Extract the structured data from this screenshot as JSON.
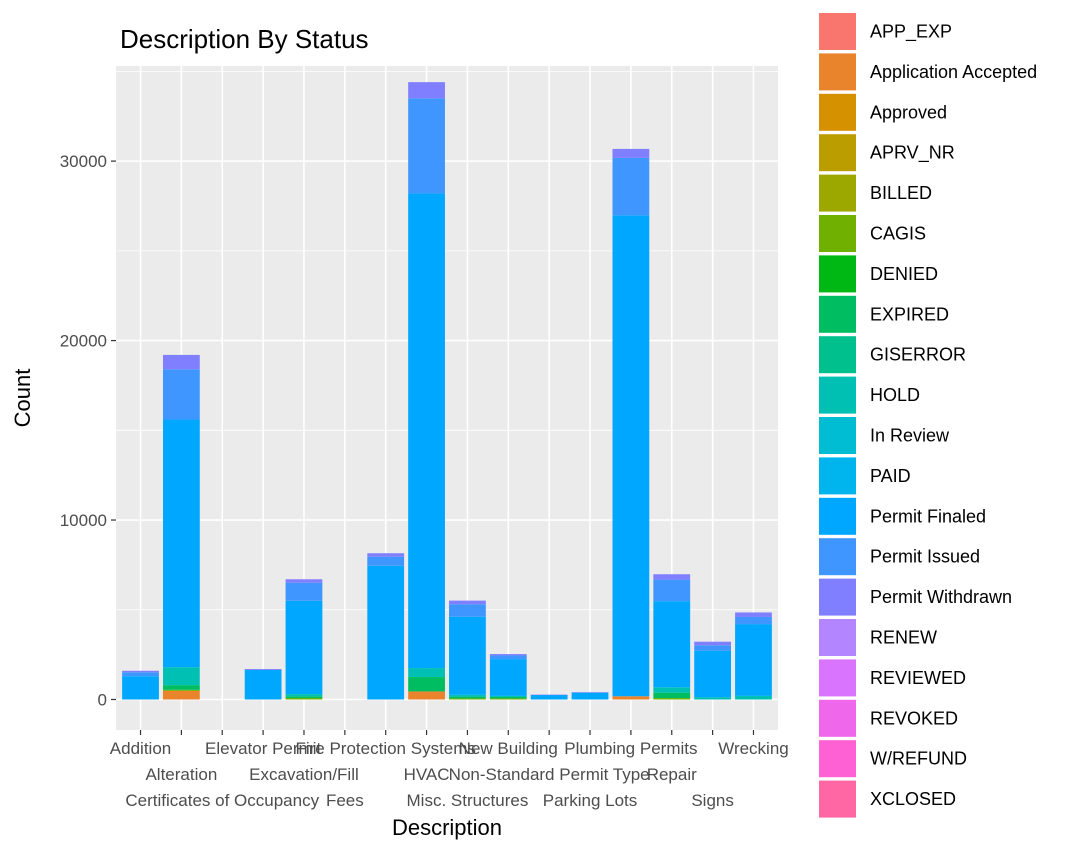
{
  "chart_data": {
    "type": "bar",
    "stacked": true,
    "title": "Description By Status",
    "xlabel": "Description",
    "ylabel": "Count",
    "ylim": [
      -1700,
      35300
    ],
    "yticks": [
      0,
      10000,
      20000,
      30000
    ],
    "ytick_labels": [
      "0",
      "10000",
      "20000",
      "30000"
    ],
    "grid": true,
    "legend_position": "right",
    "categories": [
      "Addition",
      "Alteration",
      "Certificates of Occupancy",
      "Elevator Permit",
      "Excavation/Fill",
      "Fees",
      "Fire Protection Systems",
      "HVAC",
      "Misc. Structures",
      "New Building",
      "Non-Standard Permit Type",
      "Parking Lots",
      "Plumbing Permits",
      "Repair",
      "Signs",
      "Wrecking"
    ],
    "category_label_rows": [
      0,
      1,
      2,
      0,
      1,
      2,
      0,
      1,
      2,
      0,
      1,
      2,
      0,
      1,
      2,
      0
    ],
    "series": [
      {
        "name": "APP_EXP",
        "color": "#F8766D",
        "values": [
          0,
          0,
          0,
          0,
          0,
          0,
          0,
          0,
          0,
          0,
          0,
          0,
          0,
          0,
          0,
          0
        ]
      },
      {
        "name": "Application Accepted",
        "color": "#E9842C",
        "values": [
          0,
          480,
          0,
          0,
          0,
          0,
          0,
          450,
          0,
          0,
          0,
          0,
          180,
          0,
          0,
          0
        ]
      },
      {
        "name": "Approved",
        "color": "#D69100",
        "values": [
          0,
          0,
          0,
          0,
          0,
          0,
          0,
          0,
          0,
          0,
          0,
          0,
          0,
          0,
          0,
          0
        ]
      },
      {
        "name": "APRV_NR",
        "color": "#BC9D00",
        "values": [
          0,
          0,
          0,
          0,
          0,
          0,
          0,
          0,
          0,
          0,
          0,
          0,
          0,
          0,
          0,
          0
        ]
      },
      {
        "name": "BILLED",
        "color": "#9CA700",
        "values": [
          0,
          0,
          0,
          0,
          0,
          0,
          0,
          0,
          0,
          0,
          0,
          0,
          0,
          0,
          0,
          0
        ]
      },
      {
        "name": "CAGIS",
        "color": "#6FB000",
        "values": [
          0,
          60,
          0,
          0,
          80,
          0,
          0,
          0,
          60,
          60,
          0,
          0,
          0,
          80,
          0,
          0
        ]
      },
      {
        "name": "DENIED",
        "color": "#00B813",
        "values": [
          0,
          0,
          0,
          0,
          0,
          0,
          0,
          0,
          0,
          0,
          0,
          0,
          0,
          0,
          0,
          0
        ]
      },
      {
        "name": "EXPIRED",
        "color": "#00BD61",
        "values": [
          0,
          260,
          0,
          0,
          100,
          0,
          0,
          800,
          100,
          80,
          0,
          0,
          0,
          300,
          0,
          0
        ]
      },
      {
        "name": "GISERROR",
        "color": "#00C08E",
        "values": [
          0,
          0,
          0,
          0,
          0,
          0,
          0,
          0,
          0,
          0,
          0,
          0,
          0,
          0,
          0,
          0
        ]
      },
      {
        "name": "HOLD",
        "color": "#00C0B4",
        "values": [
          0,
          1000,
          0,
          0,
          120,
          0,
          0,
          500,
          100,
          60,
          0,
          0,
          0,
          300,
          120,
          200
        ]
      },
      {
        "name": "In Review",
        "color": "#00BDD4",
        "values": [
          0,
          0,
          0,
          0,
          0,
          0,
          0,
          0,
          0,
          0,
          0,
          0,
          0,
          0,
          0,
          0
        ]
      },
      {
        "name": "PAID",
        "color": "#00B5EE",
        "values": [
          0,
          0,
          0,
          0,
          0,
          0,
          0,
          0,
          0,
          0,
          0,
          0,
          0,
          0,
          0,
          0
        ]
      },
      {
        "name": "Permit Finaled",
        "color": "#00A7FF",
        "values": [
          1300,
          13800,
          0,
          1650,
          5200,
          0,
          7450,
          26450,
          4350,
          2050,
          250,
          380,
          26800,
          4800,
          2600,
          4000
        ]
      },
      {
        "name": "Permit Issued",
        "color": "#3F96FE",
        "values": [
          220,
          2800,
          0,
          0,
          1000,
          0,
          500,
          5300,
          700,
          200,
          0,
          0,
          3200,
          1200,
          300,
          400
        ]
      },
      {
        "name": "Permit Withdrawn",
        "color": "#7F7FFF",
        "values": [
          80,
          800,
          0,
          50,
          200,
          0,
          200,
          900,
          200,
          80,
          20,
          30,
          500,
          300,
          200,
          250
        ]
      },
      {
        "name": "RENEW",
        "color": "#B385FF",
        "values": [
          0,
          0,
          0,
          0,
          0,
          0,
          0,
          0,
          0,
          0,
          0,
          0,
          0,
          0,
          0,
          0
        ]
      },
      {
        "name": "REVIEWED",
        "color": "#D874FD",
        "values": [
          0,
          0,
          0,
          0,
          0,
          0,
          0,
          0,
          0,
          0,
          0,
          0,
          0,
          0,
          0,
          0
        ]
      },
      {
        "name": "REVOKED",
        "color": "#EF67EB",
        "values": [
          0,
          0,
          0,
          0,
          0,
          0,
          0,
          0,
          0,
          0,
          0,
          0,
          0,
          0,
          0,
          0
        ]
      },
      {
        "name": "W/REFUND",
        "color": "#FD61D3",
        "values": [
          0,
          0,
          0,
          0,
          0,
          0,
          0,
          0,
          0,
          0,
          0,
          0,
          0,
          0,
          0,
          0
        ]
      },
      {
        "name": "XCLOSED",
        "color": "#FF67A4",
        "values": [
          0,
          0,
          0,
          0,
          0,
          0,
          0,
          0,
          0,
          0,
          0,
          0,
          0,
          0,
          0,
          0
        ]
      }
    ]
  }
}
